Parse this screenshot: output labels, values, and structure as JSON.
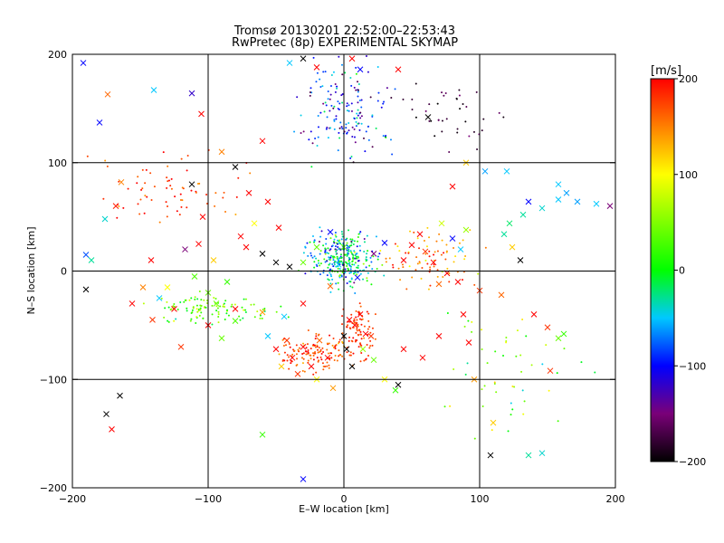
{
  "chart_data": {
    "type": "scatter",
    "title": "Tromsø 20130201 22:52:00–22:53:43",
    "subtitle": "RwPretec (8p) EXPERIMENTAL SKYMAP",
    "xlabel": "E–W location [km]",
    "ylabel": "N–S location [km]",
    "xlim": [
      -200,
      200
    ],
    "ylim": [
      -200,
      200
    ],
    "xticks": [
      -200,
      -100,
      0,
      100,
      200
    ],
    "yticks": [
      -200,
      -100,
      0,
      100,
      200
    ],
    "grid": true,
    "markers": [
      "x",
      "dot"
    ],
    "colorbar": {
      "label": "[m/s]",
      "range": [
        -200,
        200
      ],
      "ticks": [
        200,
        100,
        0,
        -100,
        -200
      ],
      "colormap": "rainbow",
      "stops": [
        {
          "value": -200,
          "color": "#000000"
        },
        {
          "value": -150,
          "color": "#7a0078"
        },
        {
          "value": -100,
          "color": "#0000ff"
        },
        {
          "value": -50,
          "color": "#00c8ff"
        },
        {
          "value": 0,
          "color": "#00ff00"
        },
        {
          "value": 100,
          "color": "#ffff00"
        },
        {
          "value": 150,
          "color": "#ff8000"
        },
        {
          "value": 200,
          "color": "#ff0000"
        }
      ]
    },
    "points": [
      {
        "x": -192,
        "y": 192,
        "v": -100,
        "m": "x"
      },
      {
        "x": -174,
        "y": 163,
        "v": 160,
        "m": "x"
      },
      {
        "x": -180,
        "y": 137,
        "v": -100,
        "m": "x"
      },
      {
        "x": -140,
        "y": 167,
        "v": -50,
        "m": "x"
      },
      {
        "x": -112,
        "y": 164,
        "v": -120,
        "m": "x"
      },
      {
        "x": -105,
        "y": 145,
        "v": 200,
        "m": "x"
      },
      {
        "x": -164,
        "y": 82,
        "v": 150,
        "m": "x"
      },
      {
        "x": -168,
        "y": 60,
        "v": 190,
        "m": "x"
      },
      {
        "x": -176,
        "y": 48,
        "v": -40,
        "m": "x"
      },
      {
        "x": -190,
        "y": 15,
        "v": -80,
        "m": "x"
      },
      {
        "x": -186,
        "y": 10,
        "v": -30,
        "m": "x"
      },
      {
        "x": -190,
        "y": -17,
        "v": -200,
        "m": "x"
      },
      {
        "x": -175,
        "y": -132,
        "v": -200,
        "m": "x"
      },
      {
        "x": -171,
        "y": -146,
        "v": 200,
        "m": "x"
      },
      {
        "x": -165,
        "y": -115,
        "v": -200,
        "m": "x"
      },
      {
        "x": -112,
        "y": 80,
        "v": -200,
        "m": "x"
      },
      {
        "x": -104,
        "y": 50,
        "v": 200,
        "m": "x"
      },
      {
        "x": -117,
        "y": 20,
        "v": -150,
        "m": "x"
      },
      {
        "x": -107,
        "y": 25,
        "v": 200,
        "m": "x"
      },
      {
        "x": -96,
        "y": 10,
        "v": 120,
        "m": "x"
      },
      {
        "x": -142,
        "y": 10,
        "v": 200,
        "m": "x"
      },
      {
        "x": -148,
        "y": -15,
        "v": 150,
        "m": "x"
      },
      {
        "x": -156,
        "y": -30,
        "v": 200,
        "m": "x"
      },
      {
        "x": -141,
        "y": -45,
        "v": 180,
        "m": "x"
      },
      {
        "x": -125,
        "y": -35,
        "v": 200,
        "m": "x"
      },
      {
        "x": -94,
        "y": -30,
        "v": 40,
        "m": "x"
      },
      {
        "x": -80,
        "y": -35,
        "v": 200,
        "m": "x"
      },
      {
        "x": -60,
        "y": -38,
        "v": 140,
        "m": "x"
      },
      {
        "x": -60,
        "y": -151,
        "v": 20,
        "m": "x"
      },
      {
        "x": -30,
        "y": -192,
        "v": -100,
        "m": "x"
      },
      {
        "x": -50,
        "y": -72,
        "v": 200,
        "m": "x"
      },
      {
        "x": -42,
        "y": -64,
        "v": 180,
        "m": "x"
      },
      {
        "x": -38,
        "y": -80,
        "v": 200,
        "m": "x"
      },
      {
        "x": -30,
        "y": -70,
        "v": 200,
        "m": "x"
      },
      {
        "x": -24,
        "y": -88,
        "v": 200,
        "m": "x"
      },
      {
        "x": -18,
        "y": -64,
        "v": 160,
        "m": "x"
      },
      {
        "x": -12,
        "y": -80,
        "v": 200,
        "m": "x"
      },
      {
        "x": -34,
        "y": -95,
        "v": 180,
        "m": "x"
      },
      {
        "x": -46,
        "y": -88,
        "v": 120,
        "m": "x"
      },
      {
        "x": -56,
        "y": -60,
        "v": -50,
        "m": "x"
      },
      {
        "x": -20,
        "y": -100,
        "v": 100,
        "m": "x"
      },
      {
        "x": -8,
        "y": -108,
        "v": 140,
        "m": "x"
      },
      {
        "x": 0,
        "y": -60,
        "v": -200,
        "m": "x"
      },
      {
        "x": 2,
        "y": -72,
        "v": -200,
        "m": "x"
      },
      {
        "x": 6,
        "y": -88,
        "v": -200,
        "m": "x"
      },
      {
        "x": 4,
        "y": -45,
        "v": 200,
        "m": "x"
      },
      {
        "x": 8,
        "y": -50,
        "v": 200,
        "m": "x"
      },
      {
        "x": 12,
        "y": -40,
        "v": 200,
        "m": "x"
      },
      {
        "x": 16,
        "y": -58,
        "v": 200,
        "m": "x"
      },
      {
        "x": 20,
        "y": -60,
        "v": 180,
        "m": "x"
      },
      {
        "x": 14,
        "y": -72,
        "v": 60,
        "m": "x"
      },
      {
        "x": 22,
        "y": -82,
        "v": 40,
        "m": "x"
      },
      {
        "x": 30,
        "y": -100,
        "v": 100,
        "m": "x"
      },
      {
        "x": 38,
        "y": -110,
        "v": 20,
        "m": "x"
      },
      {
        "x": 40,
        "y": -105,
        "v": -200,
        "m": "x"
      },
      {
        "x": 44,
        "y": -72,
        "v": 200,
        "m": "x"
      },
      {
        "x": 58,
        "y": -80,
        "v": 200,
        "m": "x"
      },
      {
        "x": 70,
        "y": -60,
        "v": 200,
        "m": "x"
      },
      {
        "x": 92,
        "y": -66,
        "v": 200,
        "m": "x"
      },
      {
        "x": 88,
        "y": -40,
        "v": 200,
        "m": "x"
      },
      {
        "x": 100,
        "y": -18,
        "v": 180,
        "m": "x"
      },
      {
        "x": 96,
        "y": -100,
        "v": 140,
        "m": "x"
      },
      {
        "x": 110,
        "y": -140,
        "v": 120,
        "m": "x"
      },
      {
        "x": 108,
        "y": -170,
        "v": -200,
        "m": "x"
      },
      {
        "x": 136,
        "y": -170,
        "v": -30,
        "m": "x"
      },
      {
        "x": 146,
        "y": -168,
        "v": -40,
        "m": "x"
      },
      {
        "x": 152,
        "y": -92,
        "v": 180,
        "m": "x"
      },
      {
        "x": 158,
        "y": -62,
        "v": 40,
        "m": "x"
      },
      {
        "x": 162,
        "y": -58,
        "v": 20,
        "m": "x"
      },
      {
        "x": 140,
        "y": -40,
        "v": 200,
        "m": "x"
      },
      {
        "x": 150,
        "y": -52,
        "v": 180,
        "m": "x"
      },
      {
        "x": 116,
        "y": -22,
        "v": 160,
        "m": "x"
      },
      {
        "x": 130,
        "y": 10,
        "v": -200,
        "m": "x"
      },
      {
        "x": 124,
        "y": 22,
        "v": 120,
        "m": "x"
      },
      {
        "x": 118,
        "y": 34,
        "v": -30,
        "m": "x"
      },
      {
        "x": 122,
        "y": 44,
        "v": -20,
        "m": "x"
      },
      {
        "x": 132,
        "y": 52,
        "v": -30,
        "m": "x"
      },
      {
        "x": 136,
        "y": 64,
        "v": -100,
        "m": "x"
      },
      {
        "x": 146,
        "y": 58,
        "v": -40,
        "m": "x"
      },
      {
        "x": 158,
        "y": 66,
        "v": -50,
        "m": "x"
      },
      {
        "x": 172,
        "y": 64,
        "v": -60,
        "m": "x"
      },
      {
        "x": 186,
        "y": 62,
        "v": -50,
        "m": "x"
      },
      {
        "x": 196,
        "y": 60,
        "v": -150,
        "m": "x"
      },
      {
        "x": 164,
        "y": 72,
        "v": -60,
        "m": "x"
      },
      {
        "x": 120,
        "y": 92,
        "v": -50,
        "m": "x"
      },
      {
        "x": 104,
        "y": 92,
        "v": -60,
        "m": "x"
      },
      {
        "x": 90,
        "y": 100,
        "v": 120,
        "m": "x"
      },
      {
        "x": 80,
        "y": 78,
        "v": 200,
        "m": "x"
      },
      {
        "x": 72,
        "y": 44,
        "v": 80,
        "m": "x"
      },
      {
        "x": 80,
        "y": 30,
        "v": -100,
        "m": "x"
      },
      {
        "x": 90,
        "y": 38,
        "v": 60,
        "m": "x"
      },
      {
        "x": 86,
        "y": 20,
        "v": -50,
        "m": "x"
      },
      {
        "x": 56,
        "y": 34,
        "v": 200,
        "m": "x"
      },
      {
        "x": 50,
        "y": 24,
        "v": 200,
        "m": "x"
      },
      {
        "x": 60,
        "y": 18,
        "v": 180,
        "m": "x"
      },
      {
        "x": 44,
        "y": 10,
        "v": 200,
        "m": "x"
      },
      {
        "x": 66,
        "y": 8,
        "v": 200,
        "m": "x"
      },
      {
        "x": 76,
        "y": -2,
        "v": 200,
        "m": "x"
      },
      {
        "x": 84,
        "y": -10,
        "v": 200,
        "m": "x"
      },
      {
        "x": 70,
        "y": -12,
        "v": 160,
        "m": "x"
      },
      {
        "x": 30,
        "y": 26,
        "v": -100,
        "m": "x"
      },
      {
        "x": 22,
        "y": 16,
        "v": -150,
        "m": "x"
      },
      {
        "x": -20,
        "y": 22,
        "v": 40,
        "m": "x"
      },
      {
        "x": -30,
        "y": 8,
        "v": 40,
        "m": "x"
      },
      {
        "x": -40,
        "y": 4,
        "v": -200,
        "m": "x"
      },
      {
        "x": -50,
        "y": 8,
        "v": -200,
        "m": "x"
      },
      {
        "x": -60,
        "y": 16,
        "v": -200,
        "m": "x"
      },
      {
        "x": -72,
        "y": 22,
        "v": 200,
        "m": "x"
      },
      {
        "x": -76,
        "y": 32,
        "v": 200,
        "m": "x"
      },
      {
        "x": -66,
        "y": 44,
        "v": 100,
        "m": "x"
      },
      {
        "x": -48,
        "y": 40,
        "v": 200,
        "m": "x"
      },
      {
        "x": -56,
        "y": 64,
        "v": 200,
        "m": "x"
      },
      {
        "x": -70,
        "y": 72,
        "v": 200,
        "m": "x"
      },
      {
        "x": -80,
        "y": 96,
        "v": -200,
        "m": "x"
      },
      {
        "x": -90,
        "y": 110,
        "v": 150,
        "m": "x"
      },
      {
        "x": -60,
        "y": 120,
        "v": 200,
        "m": "x"
      },
      {
        "x": -40,
        "y": 192,
        "v": -50,
        "m": "x"
      },
      {
        "x": -30,
        "y": 196,
        "v": -200,
        "m": "x"
      },
      {
        "x": -20,
        "y": 188,
        "v": 200,
        "m": "x"
      },
      {
        "x": 6,
        "y": 196,
        "v": 200,
        "m": "x"
      },
      {
        "x": 12,
        "y": 186,
        "v": -100,
        "m": "x"
      },
      {
        "x": 40,
        "y": 186,
        "v": 200,
        "m": "x"
      },
      {
        "x": 62,
        "y": 142,
        "v": -200,
        "m": "x"
      },
      {
        "x": -10,
        "y": 36,
        "v": -100,
        "m": "x"
      },
      {
        "x": 0,
        "y": 22,
        "v": 40,
        "m": "x"
      },
      {
        "x": -4,
        "y": 6,
        "v": -50,
        "m": "x"
      },
      {
        "x": 10,
        "y": -6,
        "v": -100,
        "m": "x"
      },
      {
        "x": -10,
        "y": -14,
        "v": 160,
        "m": "x"
      },
      {
        "x": -30,
        "y": -30,
        "v": 200,
        "m": "x"
      },
      {
        "x": -44,
        "y": -42,
        "v": -50,
        "m": "x"
      },
      {
        "x": -90,
        "y": -62,
        "v": 40,
        "m": "x"
      },
      {
        "x": -100,
        "y": -50,
        "v": 200,
        "m": "x"
      },
      {
        "x": -120,
        "y": -70,
        "v": 180,
        "m": "x"
      },
      {
        "x": -136,
        "y": -25,
        "v": -50,
        "m": "x"
      },
      {
        "x": -130,
        "y": -15,
        "v": 100,
        "m": "x"
      },
      {
        "x": -110,
        "y": -5,
        "v": 30,
        "m": "x"
      },
      {
        "x": -86,
        "y": -10,
        "v": 20,
        "m": "x"
      },
      {
        "x": -100,
        "y": -20,
        "v": 40,
        "m": "x"
      },
      {
        "x": -80,
        "y": -46,
        "v": 30,
        "m": "x"
      },
      {
        "x": 158,
        "y": 80,
        "v": -50,
        "m": "x"
      }
    ]
  }
}
